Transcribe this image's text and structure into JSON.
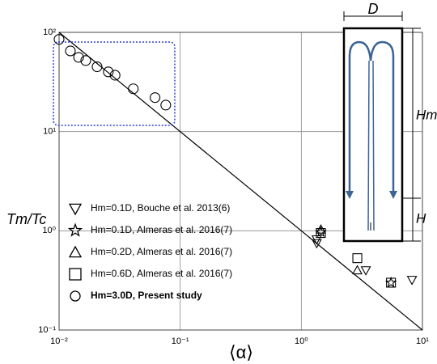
{
  "chart_data": {
    "type": "scatter",
    "x_label": "⟨α⟩",
    "y_label": "Tm/Tc",
    "log_x": true,
    "log_y": true,
    "grid": true,
    "xlim": [
      0.01,
      10
    ],
    "ylim": [
      0.1,
      100
    ],
    "xticks": [
      {
        "value": 0.01,
        "label": "10⁻²"
      },
      {
        "value": 0.1,
        "label": "10⁻¹"
      },
      {
        "value": 1,
        "label": "10⁰"
      },
      {
        "value": 10,
        "label": "10¹"
      }
    ],
    "yticks": [
      {
        "value": 0.1,
        "label": "10⁻¹"
      },
      {
        "value": 1,
        "label": "10⁰"
      },
      {
        "value": 10,
        "label": "10¹"
      },
      {
        "value": 100,
        "label": "10²"
      }
    ],
    "fit_line": {
      "x": [
        0.01,
        10
      ],
      "y": [
        100,
        0.1
      ],
      "color": "#000000"
    },
    "series": [
      {
        "name": "Hm=0.1D,  Bouche et al. 2013(6)",
        "marker": "v",
        "color": "#000000",
        "x": [
          1.34,
          1.34,
          3.41,
          8.2
        ],
        "values": [
          0.82,
          0.75,
          0.4,
          0.32
        ]
      },
      {
        "name": "Hm=0.1D,  Almeras et al. 2016(7)",
        "marker": "*",
        "color": "#000000",
        "x": [
          1.45,
          5.5
        ],
        "values": [
          0.97,
          0.3
        ]
      },
      {
        "name": "Hm=0.2D,  Almeras et al. 2016(7)",
        "marker": "^",
        "color": "#000000",
        "x": [
          1.45,
          2.9
        ],
        "values": [
          1.03,
          0.4
        ]
      },
      {
        "name": "Hm=0.6D,  Almeras et al. 2016(7)",
        "marker": "s",
        "color": "#000000",
        "x": [
          1.45,
          2.9,
          5.5
        ],
        "values": [
          0.95,
          0.53,
          0.3
        ]
      },
      {
        "name": "Hm=3.0D,  Present study",
        "marker": "o",
        "color": "#000000",
        "bold": true,
        "x": [
          0.01,
          0.0124,
          0.0145,
          0.0166,
          0.0206,
          0.0255,
          0.029,
          0.041,
          0.062,
          0.076
        ],
        "values": [
          85,
          65,
          56,
          52,
          45,
          40,
          37,
          27,
          22,
          18.5
        ]
      }
    ],
    "diagram_labels": [
      "D",
      "Hm",
      "H"
    ]
  }
}
